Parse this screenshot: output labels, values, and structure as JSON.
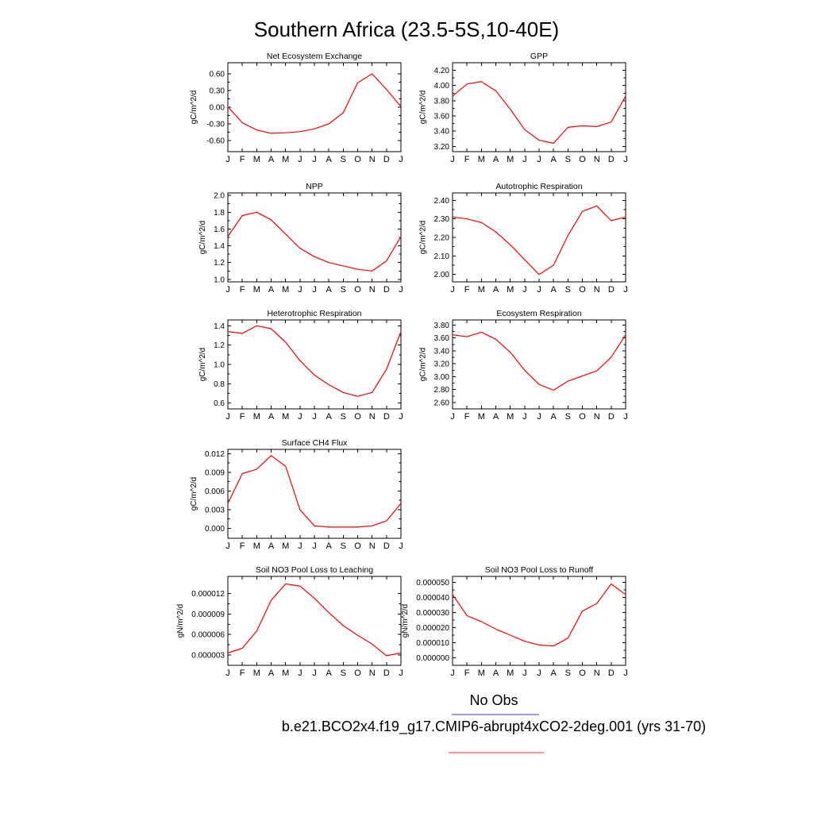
{
  "page": {
    "title": "Southern Africa (23.5-5S,10-40E)",
    "line_color": "#ff0000",
    "legend": {
      "no_obs_label": "No Obs",
      "no_obs_color": "#9999ff",
      "model_label": "b.e21.BCO2x4.f19_g17.CMIP6-abrupt4xCO2-2deg.001 (yrs 31-70)",
      "model_color": "#ff9999"
    }
  },
  "chart_data": [
    {
      "type": "line",
      "title": "Net Ecosystem Exchange",
      "ylabel": "gC/m^2/d",
      "row": 0,
      "col": 0,
      "grid": false,
      "x": [
        "J",
        "F",
        "M",
        "A",
        "M",
        "J",
        "J",
        "A",
        "S",
        "O",
        "N",
        "D",
        "J"
      ],
      "values": [
        0.01,
        -0.28,
        -0.41,
        -0.47,
        -0.46,
        -0.44,
        -0.39,
        -0.3,
        -0.1,
        0.44,
        0.6,
        0.32,
        0.01
      ],
      "ylim": [
        -0.8,
        0.8
      ],
      "yticks": [
        -0.6,
        -0.3,
        0.0,
        0.3,
        0.6
      ],
      "ytick_labels": [
        "-0.60",
        "-0.30",
        "0.00",
        "0.30",
        "0.60"
      ]
    },
    {
      "type": "line",
      "title": "GPP",
      "ylabel": "gC/m^2/d",
      "row": 0,
      "col": 1,
      "grid": false,
      "x": [
        "J",
        "F",
        "M",
        "A",
        "M",
        "J",
        "J",
        "A",
        "S",
        "O",
        "N",
        "D",
        "J"
      ],
      "values": [
        3.86,
        4.02,
        4.05,
        3.93,
        3.69,
        3.42,
        3.28,
        3.24,
        3.45,
        3.47,
        3.46,
        3.52,
        3.86
      ],
      "ylim": [
        3.13,
        4.3
      ],
      "yticks": [
        3.2,
        3.4,
        3.6,
        3.8,
        4.0,
        4.2
      ],
      "ytick_labels": [
        "3.20",
        "3.40",
        "3.60",
        "3.80",
        "4.00",
        "4.20"
      ]
    },
    {
      "type": "line",
      "title": "NPP",
      "ylabel": "gC/m^2/d",
      "row": 1,
      "col": 0,
      "grid": false,
      "x": [
        "J",
        "F",
        "M",
        "A",
        "M",
        "J",
        "J",
        "A",
        "S",
        "O",
        "N",
        "D",
        "J"
      ],
      "values": [
        1.51,
        1.76,
        1.8,
        1.71,
        1.54,
        1.37,
        1.27,
        1.2,
        1.16,
        1.12,
        1.1,
        1.22,
        1.51
      ],
      "ylim": [
        0.97,
        2.03
      ],
      "yticks": [
        1.0,
        1.2,
        1.4,
        1.6,
        1.8,
        2.0
      ],
      "ytick_labels": [
        "1.0",
        "1.2",
        "1.4",
        "1.6",
        "1.8",
        "2.0"
      ]
    },
    {
      "type": "line",
      "title": "Autotrophic Respiration",
      "ylabel": "gC/m^2/d",
      "row": 1,
      "col": 1,
      "grid": false,
      "x": [
        "J",
        "F",
        "M",
        "A",
        "M",
        "J",
        "J",
        "A",
        "S",
        "O",
        "N",
        "D",
        "J"
      ],
      "values": [
        2.31,
        2.3,
        2.28,
        2.23,
        2.16,
        2.08,
        2.0,
        2.05,
        2.21,
        2.34,
        2.37,
        2.29,
        2.31
      ],
      "ylim": [
        1.96,
        2.44
      ],
      "yticks": [
        2.0,
        2.1,
        2.2,
        2.3,
        2.4
      ],
      "ytick_labels": [
        "2.00",
        "2.10",
        "2.20",
        "2.30",
        "2.40"
      ]
    },
    {
      "type": "line",
      "title": "Heterotrophic Respiration",
      "ylabel": "gC/m^2/d",
      "row": 2,
      "col": 0,
      "grid": false,
      "x": [
        "J",
        "F",
        "M",
        "A",
        "M",
        "J",
        "J",
        "A",
        "S",
        "O",
        "N",
        "D",
        "J"
      ],
      "values": [
        1.34,
        1.32,
        1.4,
        1.37,
        1.23,
        1.04,
        0.89,
        0.79,
        0.71,
        0.67,
        0.71,
        0.95,
        1.34
      ],
      "ylim": [
        0.54,
        1.46
      ],
      "yticks": [
        0.6,
        0.8,
        1.0,
        1.2,
        1.4
      ],
      "ytick_labels": [
        "0.6",
        "0.8",
        "1.0",
        "1.2",
        "1.4"
      ]
    },
    {
      "type": "line",
      "title": "Ecosystem Respiration",
      "ylabel": "gC/m^2/d",
      "row": 2,
      "col": 1,
      "grid": false,
      "x": [
        "J",
        "F",
        "M",
        "A",
        "M",
        "J",
        "J",
        "A",
        "S",
        "O",
        "N",
        "D",
        "J"
      ],
      "values": [
        3.65,
        3.62,
        3.69,
        3.58,
        3.38,
        3.1,
        2.88,
        2.79,
        2.93,
        3.01,
        3.09,
        3.3,
        3.65
      ],
      "ylim": [
        2.5,
        3.88
      ],
      "yticks": [
        2.6,
        2.8,
        3.0,
        3.2,
        3.4,
        3.6,
        3.8
      ],
      "ytick_labels": [
        "2.60",
        "2.80",
        "3.00",
        "3.20",
        "3.40",
        "3.60",
        "3.80"
      ]
    },
    {
      "type": "line",
      "title": "Surface CH4 Flux",
      "ylabel": "gC/m^2/d",
      "row": 3,
      "col": 0,
      "grid": false,
      "x": [
        "J",
        "F",
        "M",
        "A",
        "M",
        "J",
        "J",
        "A",
        "S",
        "O",
        "N",
        "D",
        "J"
      ],
      "values": [
        0.004,
        0.0088,
        0.0095,
        0.0117,
        0.01,
        0.003,
        0.0004,
        0.0002,
        0.0002,
        0.0002,
        0.0004,
        0.0012,
        0.004
      ],
      "ylim": [
        -0.0016,
        0.0127
      ],
      "yticks": [
        0.0,
        0.003,
        0.006,
        0.009,
        0.012
      ],
      "ytick_labels": [
        "0.000",
        "0.003",
        "0.006",
        "0.009",
        "0.012"
      ]
    },
    {
      "type": "line",
      "title": "Soil NO3 Pool Loss to Leaching",
      "ylabel": "gN/m^2/d",
      "row": 4,
      "col": 0,
      "grid": false,
      "x": [
        "J",
        "F",
        "M",
        "A",
        "M",
        "J",
        "J",
        "A",
        "S",
        "O",
        "N",
        "D",
        "J"
      ],
      "values": [
        3.3e-06,
        4e-06,
        6.5e-06,
        1.1e-05,
        1.34e-05,
        1.31e-05,
        1.13e-05,
        9.2e-06,
        7.3e-06,
        5.9e-06,
        4.6e-06,
        2.9e-06,
        3.3e-06
      ],
      "ylim": [
        1.5e-06,
        1.45e-05
      ],
      "yticks": [
        3e-06,
        6e-06,
        9e-06,
        1.2e-05
      ],
      "ytick_labels": [
        "0.000003",
        "0.000006",
        "0.000009",
        "0.000012"
      ]
    },
    {
      "type": "line",
      "title": "Soil NO3 Pool Loss to Runoff",
      "ylabel": "gN/m^2/d",
      "row": 4,
      "col": 1,
      "grid": false,
      "x": [
        "J",
        "F",
        "M",
        "A",
        "M",
        "J",
        "J",
        "A",
        "S",
        "O",
        "N",
        "D",
        "J"
      ],
      "values": [
        4.2e-05,
        2.8e-05,
        2.4e-05,
        1.9e-05,
        1.5e-05,
        1.1e-05,
        8.5e-06,
        7.8e-06,
        1.3e-05,
        3.1e-05,
        3.6e-05,
        4.9e-05,
        4.2e-05
      ],
      "ylim": [
        -5e-06,
        5.4e-05
      ],
      "yticks": [
        0.0,
        1e-05,
        2e-05,
        3e-05,
        4e-05,
        5e-05
      ],
      "ytick_labels": [
        "0.000000",
        "0.000010",
        "0.000020",
        "0.000030",
        "0.000040",
        "0.000050"
      ]
    }
  ]
}
